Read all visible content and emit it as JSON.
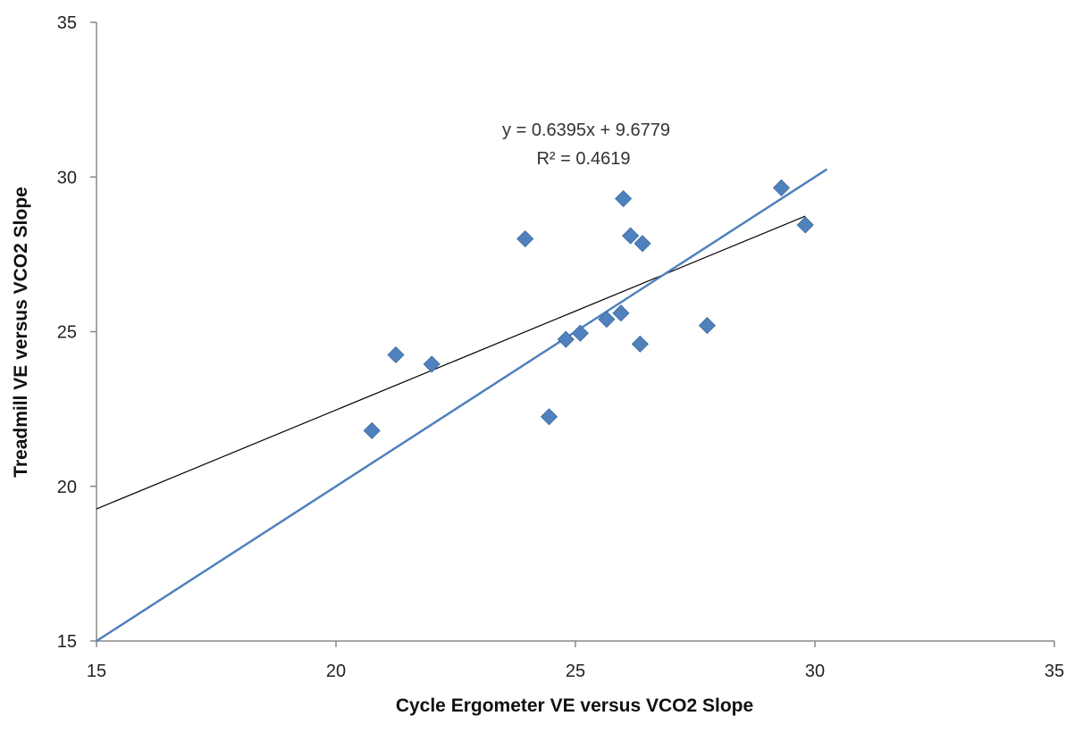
{
  "chart_data": {
    "type": "scatter",
    "title": "",
    "xlabel": "Cycle Ergometer VE versus VCO2 Slope",
    "ylabel": "Treadmill VE versus VCO2 Slope",
    "xlim": [
      15,
      35
    ],
    "ylim": [
      15,
      35
    ],
    "xticks": [
      "15",
      "20",
      "25",
      "30",
      "35"
    ],
    "yticks": [
      "15",
      "20",
      "25",
      "30",
      "35"
    ],
    "grid": false,
    "legend": "none",
    "series": [
      {
        "marker": "diamond",
        "color": "#4F81BD",
        "points": [
          {
            "x": 20.75,
            "y": 21.8
          },
          {
            "x": 21.25,
            "y": 24.25
          },
          {
            "x": 22.0,
            "y": 23.95
          },
          {
            "x": 23.95,
            "y": 28.0
          },
          {
            "x": 24.45,
            "y": 22.25
          },
          {
            "x": 24.8,
            "y": 24.75
          },
          {
            "x": 25.1,
            "y": 24.95
          },
          {
            "x": 25.65,
            "y": 25.4
          },
          {
            "x": 25.95,
            "y": 25.6
          },
          {
            "x": 26.0,
            "y": 29.3
          },
          {
            "x": 26.15,
            "y": 28.1
          },
          {
            "x": 26.35,
            "y": 24.6
          },
          {
            "x": 26.4,
            "y": 27.85
          },
          {
            "x": 27.75,
            "y": 25.2
          },
          {
            "x": 29.3,
            "y": 29.65
          },
          {
            "x": 29.8,
            "y": 28.45
          }
        ]
      }
    ],
    "trendline": {
      "slope": 0.6395,
      "intercept": 9.6779,
      "x_range": [
        15,
        29.8
      ],
      "color": "#000000"
    },
    "identity_line": {
      "x_range": [
        15,
        30.25
      ],
      "color": "#4F81BD"
    },
    "annotations": {
      "equation": "y = 0.6395x + 9.6779",
      "r_squared": "R² = 0.4619"
    }
  }
}
